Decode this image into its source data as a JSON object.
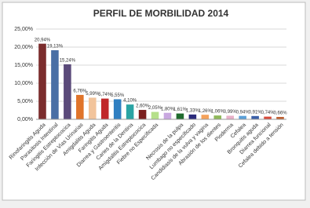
{
  "chart_data": {
    "type": "bar",
    "title": "PERFIL DE MORBILIDAD 2014",
    "categories": [
      "Rinofaringitis Aguda",
      "Parasitosis Intestinal",
      "Faringitis Estreptococica",
      "Infección de Vias Urinarias",
      "Amigdalitis Aguda",
      "Faringitis Aguda",
      "Diarrea y Gastroenteritis",
      "Caries de la Dentina",
      "Amigdalitis Estreptococica",
      "Fiebre no Especificada",
      null,
      "Necrosis de la pulpa",
      "Lumbago no especificado",
      "Candidiasis de la vulva y vagina",
      "Abrasión de los dientes",
      "Pioderma",
      "Cefalea",
      "Bronquitis aguda",
      "Diarrea funcional",
      "Cefalea debido a tensión"
    ],
    "values": [
      20.94,
      19.13,
      15.24,
      6.76,
      5.99,
      5.74,
      5.55,
      4.1,
      2.6,
      2.05,
      1.8,
      1.61,
      1.33,
      1.26,
      1.06,
      0.99,
      0.94,
      0.91,
      0.74,
      0.66
    ],
    "value_labels": [
      "20,94%",
      "19,13%",
      "15,24%",
      "6,76%",
      "5,99%",
      "5,74%",
      "5,55%",
      "4,10%",
      "2,60%",
      "2,05%",
      "1,80%",
      "1,61%",
      "1,33%",
      "1,26%",
      "1,06%",
      "0,99%",
      "0,94%",
      "0,91%",
      "0,74%",
      "0,66%"
    ],
    "colors": [
      "#7b2c2c",
      "#4a6fa5",
      "#5b4a7a",
      "#e0742a",
      "#f2c49b",
      "#c0282a",
      "#2f7fc1",
      "#2aa4a4",
      "#7b1f1f",
      "#b5e08a",
      "#c9a8e0",
      "#1f6b2e",
      "#2a2a7a",
      "#f5a25a",
      "#8fb85a",
      "#e8b0c8",
      "#5aa0d8",
      "#3a5fa8",
      "#d84a3a",
      "#c06030"
    ],
    "ylim": [
      0,
      25
    ],
    "yticks": [
      {
        "value": 0,
        "label": "0,00%"
      },
      {
        "value": 5,
        "label": "5,00%"
      },
      {
        "value": 10,
        "label": "10,00%"
      },
      {
        "value": 15,
        "label": "15,00%"
      },
      {
        "value": 20,
        "label": "20,00%"
      },
      {
        "value": 25,
        "label": "25,00%"
      }
    ],
    "grid": true
  }
}
